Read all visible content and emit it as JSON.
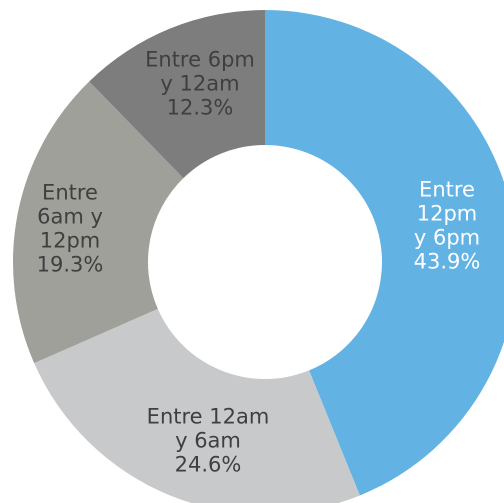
{
  "chart_data": {
    "type": "pie",
    "variant": "donut",
    "title": "",
    "legend": "none",
    "slices": [
      {
        "name": "Entre 12pm y 6pm",
        "value": 43.9,
        "label_lines": [
          "Entre",
          "12pm",
          "y 6pm",
          "43.9%"
        ],
        "color": "#62b3e3",
        "label_color": "#ffffff"
      },
      {
        "name": "Entre 12am y 6am",
        "value": 24.6,
        "label_lines": [
          "Entre 12am",
          "y 6am",
          "24.6%"
        ],
        "color": "#c8c9cb",
        "label_color": "#3f3f3f"
      },
      {
        "name": "Entre 6am y 12pm",
        "value": 19.3,
        "label_lines": [
          "Entre",
          "6am y",
          "12pm",
          "19.3%"
        ],
        "color": "#a0a09a",
        "label_color": "#3f3f3f"
      },
      {
        "name": "Entre 6pm y 12am",
        "value": 12.3,
        "label_lines": [
          "Entre 6pm",
          "y 12am",
          "12.3%"
        ],
        "color": "#7d7d7d",
        "label_color": "#3f3f3f"
      }
    ]
  }
}
